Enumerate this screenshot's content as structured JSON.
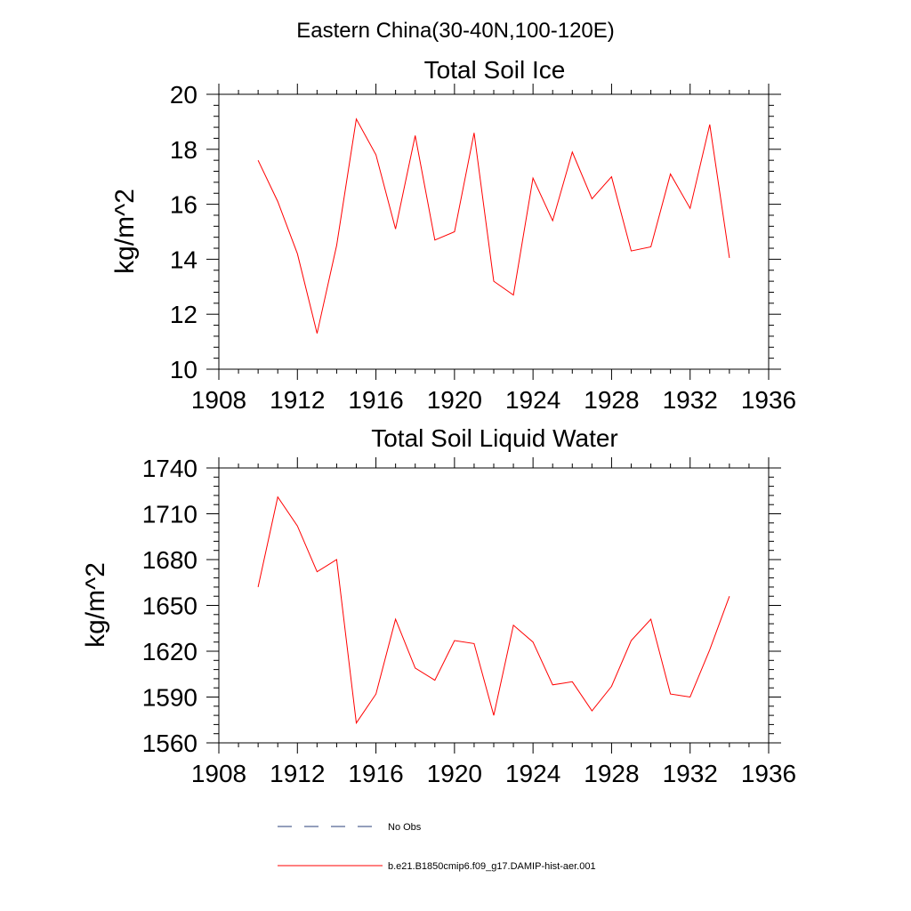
{
  "figure_title": "Eastern China(30-40N,100-120E)",
  "chart_data": [
    {
      "type": "line",
      "title": "Total Soil Ice",
      "xlabel": "",
      "ylabel": "kg/m^2",
      "xlim": [
        1908,
        1936
      ],
      "ylim": [
        10,
        20
      ],
      "xticks": [
        1908,
        1912,
        1916,
        1920,
        1924,
        1928,
        1932,
        1936
      ],
      "yticks": [
        10,
        12,
        14,
        16,
        18,
        20
      ],
      "xtick_labels": [
        "1908",
        "1912",
        "1916",
        "1920",
        "1924",
        "1928",
        "1932",
        "1936"
      ],
      "ytick_labels": [
        "10",
        "12",
        "14",
        "16",
        "18",
        "20"
      ],
      "x": [
        1910,
        1911,
        1912,
        1913,
        1914,
        1915,
        1916,
        1917,
        1918,
        1919,
        1920,
        1921,
        1922,
        1923,
        1924,
        1925,
        1926,
        1927,
        1928,
        1929,
        1930,
        1931,
        1932,
        1933,
        1934
      ],
      "series": [
        {
          "name": "b.e21.B1850cmip6.f09_g17.DAMIP-hist-aer.001",
          "color": "#ff0000",
          "values": [
            17.6,
            16.1,
            14.2,
            11.3,
            14.5,
            19.1,
            17.8,
            15.1,
            18.5,
            14.7,
            15.0,
            18.6,
            13.2,
            12.7,
            16.95,
            15.4,
            17.9,
            16.2,
            17.0,
            14.3,
            14.45,
            17.1,
            15.85,
            18.9,
            14.05
          ]
        }
      ],
      "grid": false
    },
    {
      "type": "line",
      "title": "Total Soil Liquid Water",
      "xlabel": "",
      "ylabel": "kg/m^2",
      "xlim": [
        1908,
        1936
      ],
      "ylim": [
        1560,
        1740
      ],
      "xticks": [
        1908,
        1912,
        1916,
        1920,
        1924,
        1928,
        1932,
        1936
      ],
      "yticks": [
        1560,
        1590,
        1620,
        1650,
        1680,
        1710,
        1740
      ],
      "xtick_labels": [
        "1908",
        "1912",
        "1916",
        "1920",
        "1924",
        "1928",
        "1932",
        "1936"
      ],
      "ytick_labels": [
        "1560",
        "1590",
        "1620",
        "1650",
        "1680",
        "1710",
        "1740"
      ],
      "x": [
        1910,
        1911,
        1912,
        1913,
        1914,
        1915,
        1916,
        1917,
        1918,
        1919,
        1920,
        1921,
        1922,
        1923,
        1924,
        1925,
        1926,
        1927,
        1928,
        1929,
        1930,
        1931,
        1932,
        1933,
        1934
      ],
      "series": [
        {
          "name": "b.e21.B1850cmip6.f09_g17.DAMIP-hist-aer.001",
          "color": "#ff0000",
          "values": [
            1662,
            1721,
            1702,
            1672,
            1680,
            1573,
            1592,
            1641,
            1609,
            1601,
            1627,
            1625,
            1578,
            1637,
            1626,
            1598,
            1600,
            1581,
            1597,
            1627,
            1641,
            1592,
            1590,
            1621,
            1656
          ]
        }
      ],
      "grid": false
    }
  ],
  "legend": {
    "placement": "bottom",
    "entries": [
      {
        "label": "No Obs",
        "style": "dashed",
        "color": "#2a3f7a"
      },
      {
        "label": "b.e21.B1850cmip6.f09_g17.DAMIP-hist-aer.001",
        "style": "solid",
        "color": "#ff0000"
      }
    ]
  }
}
